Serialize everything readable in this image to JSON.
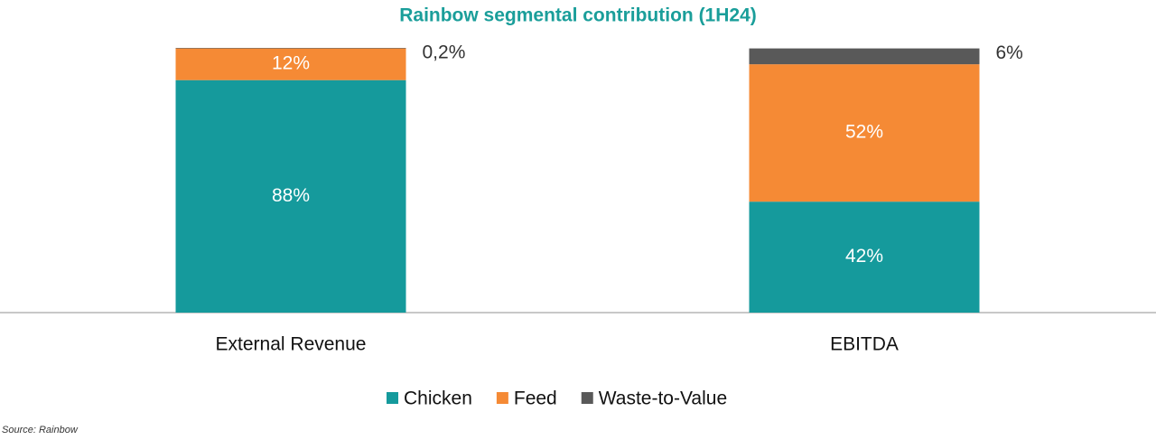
{
  "chart_data": {
    "type": "stacked_bar",
    "title": "Rainbow segmental contribution (1H24)",
    "categories": [
      "External Revenue",
      "EBITDA"
    ],
    "series": [
      {
        "name": "Chicken",
        "color": "#159a9c",
        "values": [
          88,
          42
        ],
        "value_labels": [
          "88%",
          "42%"
        ]
      },
      {
        "name": "Feed",
        "color": "#f58a35",
        "values": [
          12,
          52
        ],
        "value_labels": [
          "12%",
          "52%"
        ]
      },
      {
        "name": "Waste-to-Value",
        "color": "#595959",
        "values": [
          0.2,
          6
        ],
        "value_labels": [
          "0,2%",
          "6%"
        ]
      }
    ],
    "legend": "bottom",
    "source": "Source: Rainbow"
  }
}
